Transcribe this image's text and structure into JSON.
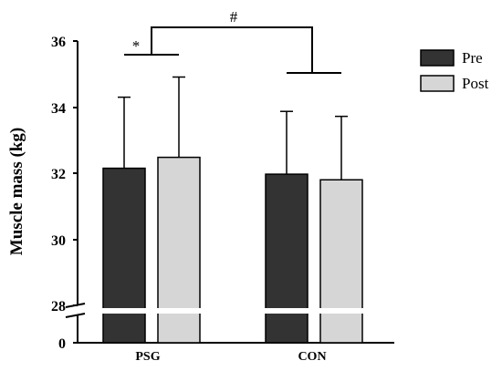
{
  "chart_data": {
    "type": "bar",
    "title": "",
    "xlabel": "",
    "ylabel": "Muscle mass (kg)",
    "ylim": [
      28,
      36
    ],
    "axis_break": true,
    "yticks": [
      "0",
      "28",
      "30",
      "32",
      "34",
      "36"
    ],
    "categories": [
      "PSG",
      "CON"
    ],
    "series": [
      {
        "name": "Pre",
        "color": "#333333",
        "values": [
          32.15,
          31.97
        ],
        "errors": [
          2.15,
          1.9
        ]
      },
      {
        "name": "Post",
        "color": "#d6d6d6",
        "values": [
          32.48,
          31.8
        ],
        "errors": [
          2.43,
          1.92
        ]
      }
    ],
    "legend_position": "top-right",
    "annotations": {
      "within_group": "*",
      "between_group": "#"
    }
  }
}
